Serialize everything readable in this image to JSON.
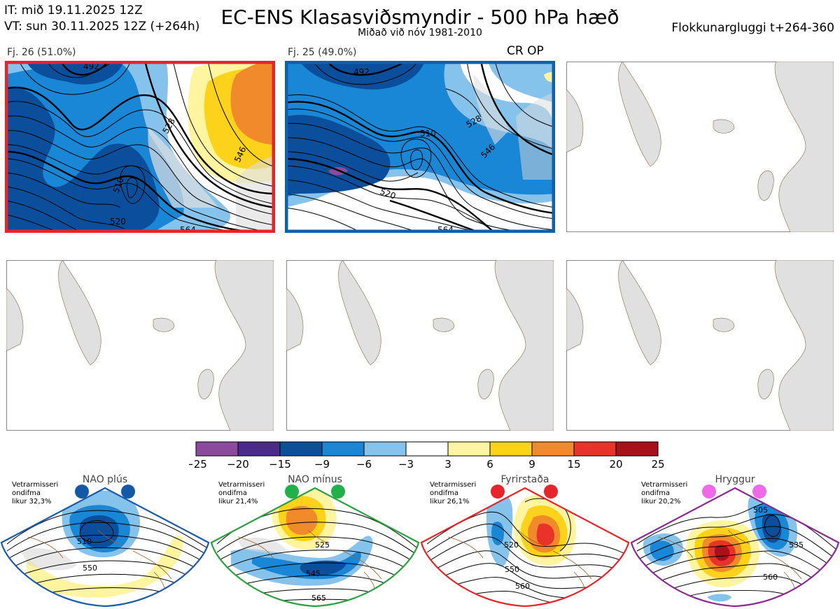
{
  "header": {
    "it": "IT: mið 19.11.2025 12Z",
    "vt": "VT: sun 30.11.2025 12Z  (+264h)",
    "title": "EC-ENS Klasasviðsmyndir - 500 hPa hæð",
    "subtitle": "Miðað við nóv 1981-2010",
    "window": "Flokkunargluggi t+264-360"
  },
  "clusters": [
    {
      "label": "Fj. 26 (51.0%)",
      "frame_color": "#e8242a",
      "contour_labels": [
        "492",
        "510",
        "528",
        "546",
        "520",
        "564"
      ]
    },
    {
      "label": "Fj. 25 (49.0%)",
      "frame_color": "#1060b0",
      "tag": "CR OP",
      "contour_labels": [
        "492",
        "510",
        "528",
        "546",
        "564",
        "520"
      ]
    }
  ],
  "legend": {
    "ticks": [
      "−25",
      "−20",
      "−15",
      "−9",
      "−6",
      "−3",
      "3",
      "6",
      "9",
      "15",
      "20",
      "25"
    ],
    "colors": [
      "#8c4a9c",
      "#4a2a8c",
      "#0b4f9c",
      "#1a86d6",
      "#86c3ec",
      "#ffffff",
      "#fff4a0",
      "#fcd21a",
      "#f08a2a",
      "#e8322a",
      "#a8101a"
    ]
  },
  "regimes": [
    {
      "name": "NAO plús",
      "lines": [
        "Vetrarmisseri",
        "ondifma",
        "likur 32,3%"
      ],
      "color": "#1a5aa8",
      "dot_color": "#1458a8",
      "contours": [
        "510",
        "550"
      ]
    },
    {
      "name": "NAO mínus",
      "lines": [
        "Vetrarmisseri",
        "ondifma",
        "likur 21,4%"
      ],
      "color": "#2aa040",
      "dot_color": "#22b04a",
      "contours": [
        "525",
        "545",
        "565"
      ]
    },
    {
      "name": "Fyrirstaða",
      "lines": [
        "Vetrarmisseri",
        "ondifma",
        "likur 26,1%"
      ],
      "color": "#e8242a",
      "dot_color": "#e8242a",
      "contours": [
        "520",
        "550",
        "560"
      ]
    },
    {
      "name": "Hryggur",
      "lines": [
        "Vetrarmisseri",
        "ondifma",
        "likur 20,2%"
      ],
      "color": "#8a2a90",
      "dot_color": "#ee6ae8",
      "contours": [
        "505",
        "535",
        "560"
      ]
    }
  ]
}
